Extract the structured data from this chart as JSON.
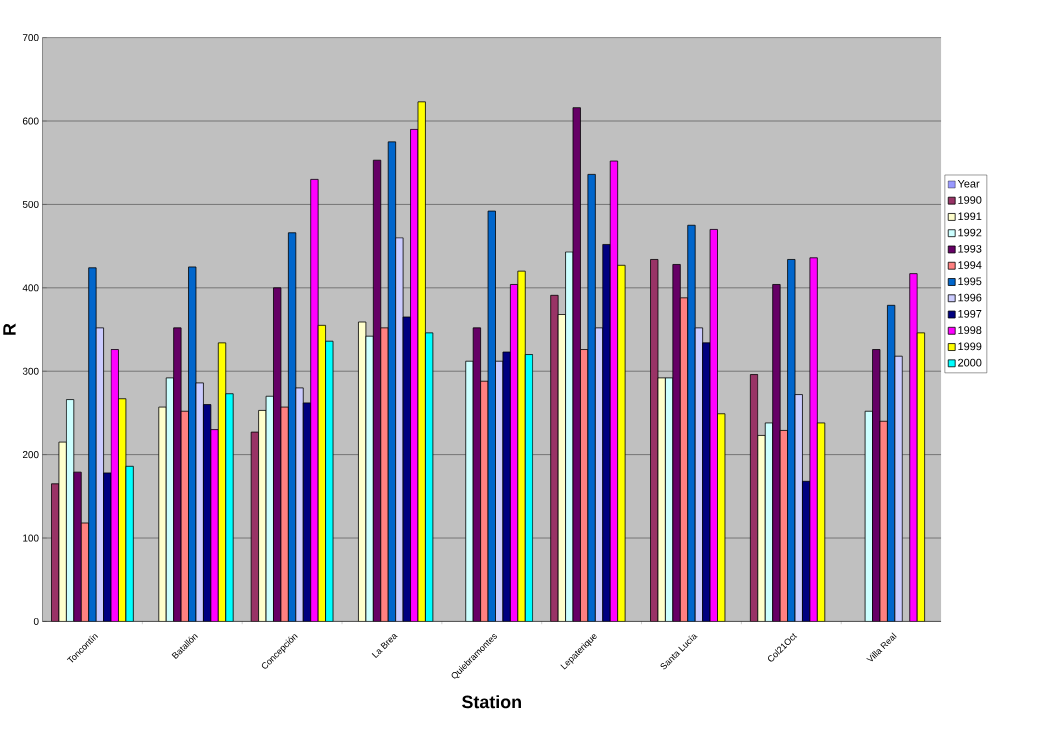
{
  "chart_data": {
    "type": "bar",
    "xlabel": "Station",
    "ylabel": "R",
    "categories": [
      "Toncontín",
      "Batallón",
      "Concepción",
      "La Brea",
      "Quiebramontes",
      "Lepaterique",
      "Santa Lucía",
      "Col21Oct",
      "Villa Real"
    ],
    "series": [
      {
        "name": "Year",
        "color": "#9999ff",
        "values": [
          null,
          null,
          null,
          null,
          null,
          null,
          null,
          null,
          null
        ]
      },
      {
        "name": "1990",
        "color": "#993366",
        "values": [
          165,
          null,
          227,
          null,
          null,
          391,
          434,
          296,
          null
        ]
      },
      {
        "name": "1991",
        "color": "#ffffcc",
        "values": [
          215,
          257,
          253,
          359,
          null,
          368,
          292,
          223,
          null
        ]
      },
      {
        "name": "1992",
        "color": "#ccffff",
        "values": [
          266,
          292,
          270,
          342,
          312,
          443,
          292,
          238,
          252
        ]
      },
      {
        "name": "1993",
        "color": "#660066",
        "values": [
          179,
          352,
          400,
          553,
          352,
          616,
          428,
          404,
          326
        ]
      },
      {
        "name": "1994",
        "color": "#ff8080",
        "values": [
          118,
          252,
          257,
          352,
          288,
          326,
          388,
          229,
          240
        ]
      },
      {
        "name": "1995",
        "color": "#0066cc",
        "values": [
          424,
          425,
          466,
          575,
          492,
          536,
          475,
          434,
          379
        ]
      },
      {
        "name": "1996",
        "color": "#ccccff",
        "values": [
          352,
          286,
          280,
          460,
          312,
          352,
          352,
          272,
          318
        ]
      },
      {
        "name": "1997",
        "color": "#000080",
        "values": [
          178,
          260,
          262,
          365,
          323,
          452,
          334,
          168,
          null
        ]
      },
      {
        "name": "1998",
        "color": "#ff00ff",
        "values": [
          326,
          230,
          530,
          590,
          404,
          552,
          470,
          436,
          417
        ]
      },
      {
        "name": "1999",
        "color": "#ffff00",
        "values": [
          267,
          334,
          355,
          623,
          420,
          427,
          249,
          238,
          346
        ]
      },
      {
        "name": "2000",
        "color": "#00ffff",
        "values": [
          186,
          273,
          336,
          346,
          320,
          null,
          null,
          null,
          null
        ]
      }
    ],
    "ylim": [
      0,
      700
    ],
    "yticks": [
      0,
      100,
      200,
      300,
      400,
      500,
      600,
      700
    ],
    "grid": "y",
    "legend": "right"
  }
}
